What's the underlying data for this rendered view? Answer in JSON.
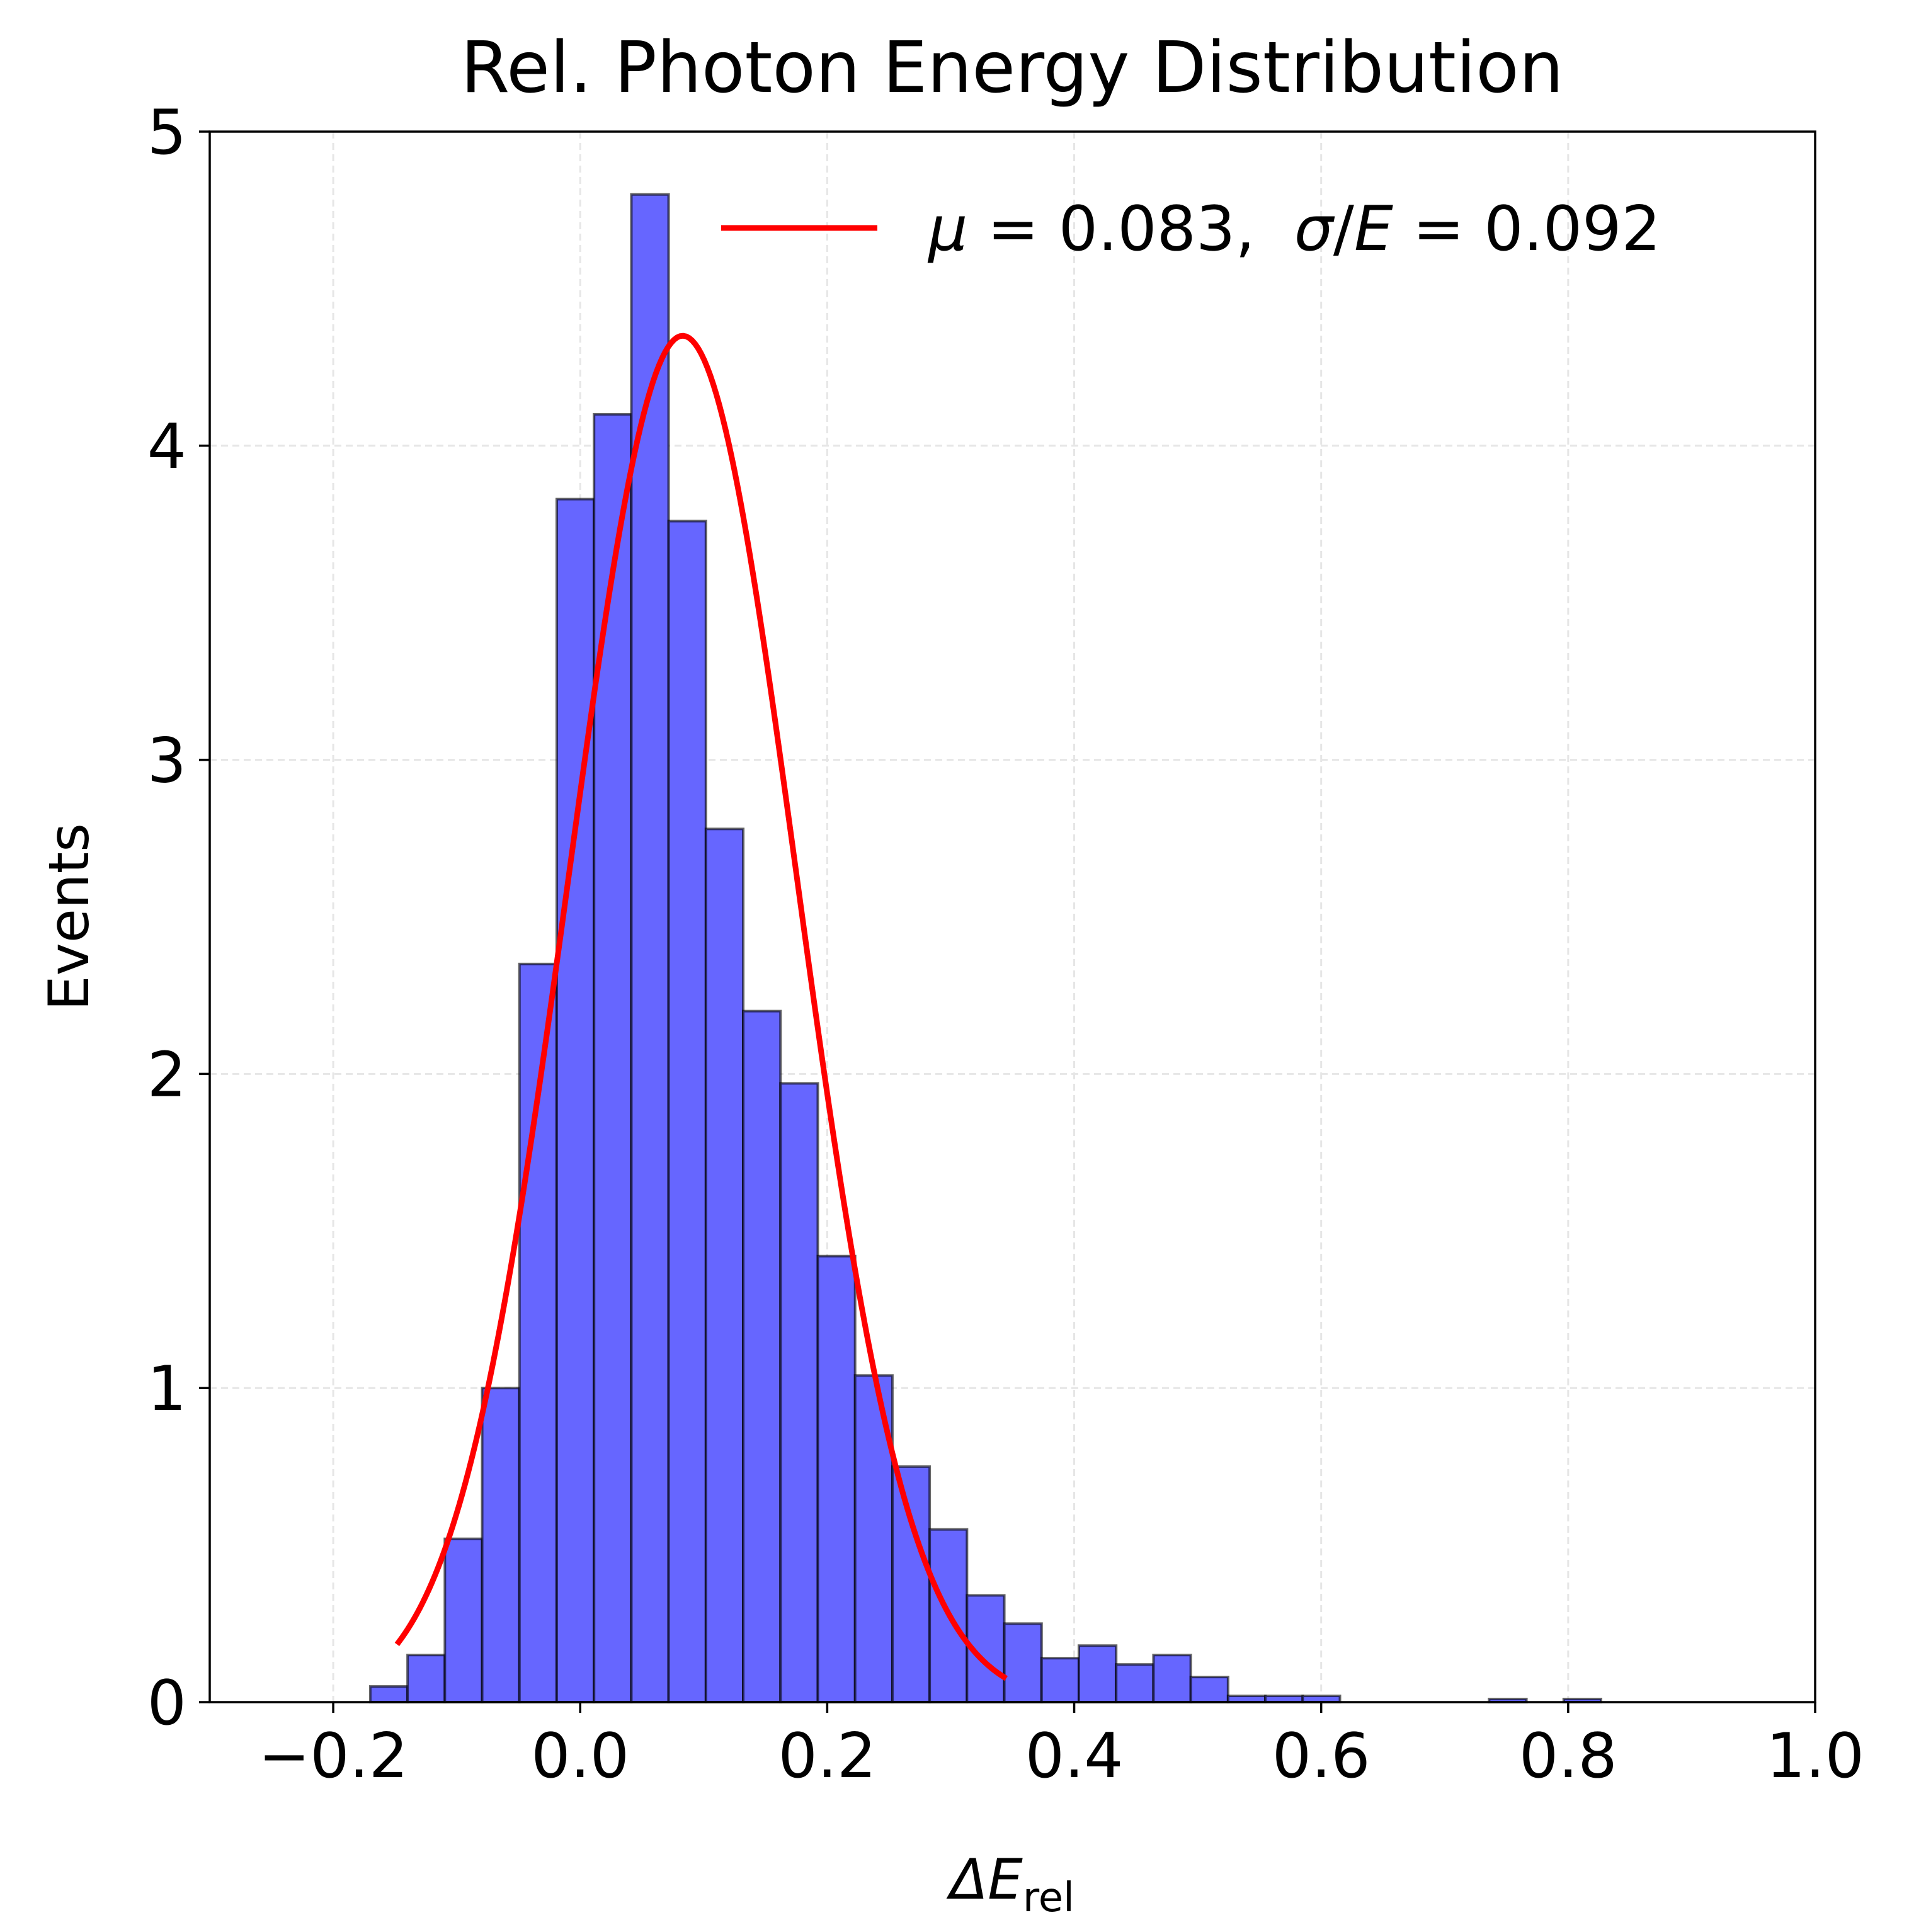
{
  "chart_data": {
    "type": "bar",
    "title": "Rel. Photon Energy Distribution",
    "xlabel": {
      "main": "ΔE",
      "sub": "rel"
    },
    "ylabel": "Events",
    "xlim": [
      -0.3,
      1.0
    ],
    "ylim": [
      0,
      5
    ],
    "xticks": [
      -0.2,
      0.0,
      0.2,
      0.4,
      0.6,
      0.8,
      1.0
    ],
    "xtick_labels": [
      "−0.2",
      "0.0",
      "0.2",
      "0.4",
      "0.6",
      "0.8",
      "1.0"
    ],
    "yticks": [
      0,
      1,
      2,
      3,
      4,
      5
    ],
    "ytick_labels": [
      "0",
      "1",
      "2",
      "3",
      "4",
      "5"
    ],
    "grid": true,
    "bin_start": -0.17,
    "bin_width": 0.0302,
    "values": [
      0.05,
      0.15,
      0.52,
      1.0,
      2.35,
      3.83,
      4.1,
      4.8,
      3.76,
      2.78,
      2.2,
      1.97,
      1.42,
      1.04,
      0.75,
      0.55,
      0.34,
      0.25,
      0.14,
      0.18,
      0.12,
      0.15,
      0.08,
      0.02,
      0.02,
      0.02,
      0,
      0,
      0,
      0,
      0.01,
      0,
      0.01
    ],
    "bar_color": "#6666ff",
    "edge_color": "#000000",
    "fit": {
      "type": "gaussian",
      "mu": 0.083,
      "sigma": 0.092,
      "amplitude": 4.35,
      "x_range": [
        -0.147,
        0.343
      ],
      "color": "#ff0000"
    },
    "legend": {
      "mu_symbol": "μ",
      "eq1": " = 0.083,  ",
      "sigma_symbol": "σ",
      "slash": "/",
      "e_symbol": "E",
      "eq2": " = 0.092",
      "position": "top-right"
    }
  }
}
